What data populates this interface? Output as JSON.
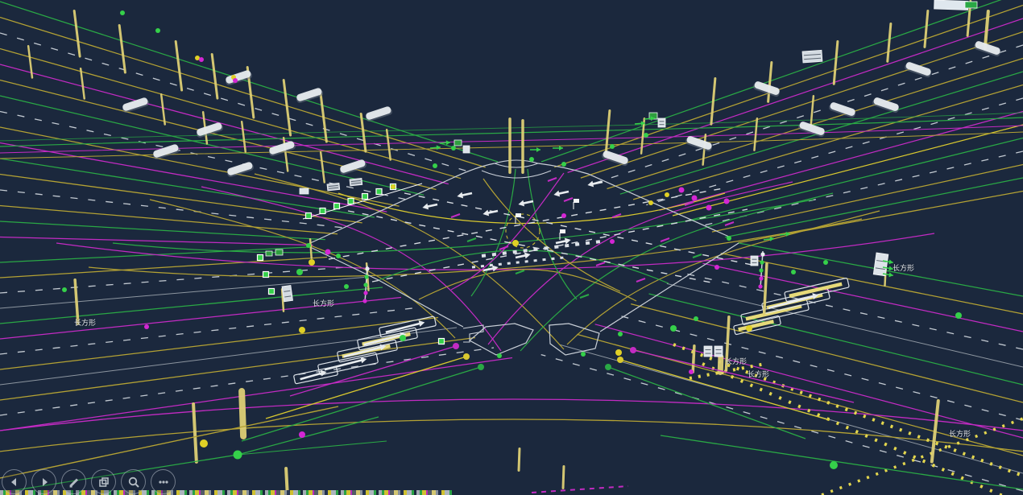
{
  "scene": {
    "background": "#1b283d",
    "labels": [
      {
        "text": "长方形"
      },
      {
        "text": "长方形"
      },
      {
        "text": "长方形"
      },
      {
        "text": "长方形"
      },
      {
        "text": "长方形"
      },
      {
        "text": "长方形"
      }
    ]
  },
  "colors": {
    "background": "#1b283d",
    "lane_green": "#2aa845",
    "lane_yellow": "#b4a234",
    "lane_bright_yellow": "#d9c92f",
    "lane_magenta": "#c32bc3",
    "lane_white": "#c3cad2",
    "lane_gray": "#8d96a0",
    "boundary": "#c9cfd7",
    "pole": "#ddcf75",
    "marking_white": "#e8ecef",
    "node_green": "#35d04a",
    "dot_yellow": "#e0d026",
    "dot_magenta": "#d426d4",
    "sign_white": "#dde3e9",
    "sign_green": "#2f9e3f",
    "toolbar_icon": "#b4bcc4"
  },
  "toolbar": {
    "buttons": [
      {
        "name": "step-back",
        "icon": "arrow-left-icon"
      },
      {
        "name": "step-forward",
        "icon": "arrow-right-icon"
      },
      {
        "name": "draw",
        "icon": "pencil-icon"
      },
      {
        "name": "copy",
        "icon": "copy-icon"
      },
      {
        "name": "zoom",
        "icon": "magnifier-icon"
      },
      {
        "name": "more",
        "icon": "ellipsis-icon"
      }
    ]
  }
}
